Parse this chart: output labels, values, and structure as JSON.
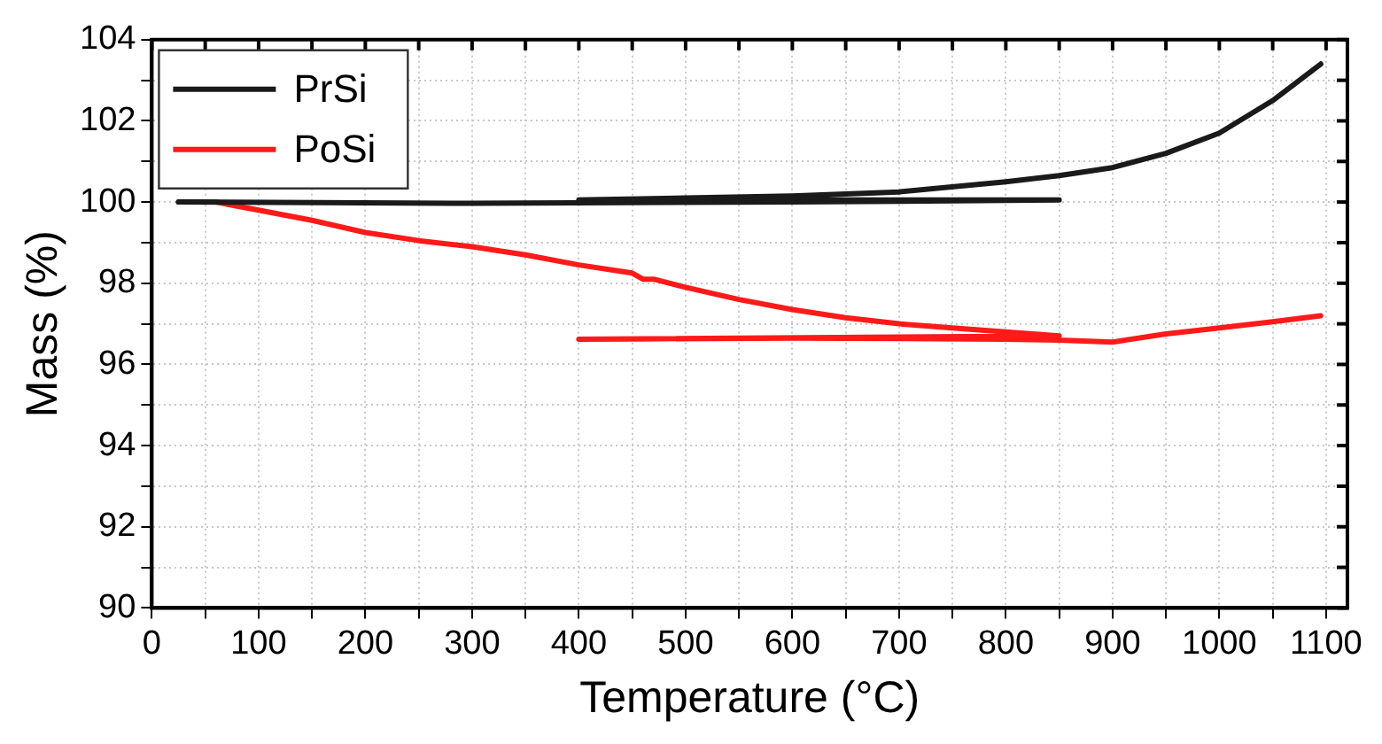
{
  "chart_data": {
    "type": "line",
    "xlabel": "Temperature (°C)",
    "ylabel": "Mass (%)",
    "xlim": [
      0,
      1120
    ],
    "ylim": [
      90,
      104
    ],
    "xticks": [
      0,
      {
        "value": 50,
        "label": null
      },
      100,
      {
        "value": 150,
        "label": null
      },
      200,
      {
        "value": 250,
        "label": null
      },
      300,
      {
        "value": 350,
        "label": null
      },
      400,
      {
        "value": 450,
        "label": null
      },
      500,
      {
        "value": 550,
        "label": null
      },
      600,
      {
        "value": 650,
        "label": null
      },
      700,
      {
        "value": 750,
        "label": null
      },
      800,
      {
        "value": 850,
        "label": null
      },
      900,
      {
        "value": 950,
        "label": null
      },
      1000,
      {
        "value": 1050,
        "label": null
      },
      1100
    ],
    "yticks": [
      90,
      {
        "value": 91,
        "label": null
      },
      92,
      {
        "value": 93,
        "label": null
      },
      94,
      {
        "value": 95,
        "label": null
      },
      96,
      {
        "value": 97,
        "label": null
      },
      98,
      {
        "value": 99,
        "label": null
      },
      100,
      {
        "value": 101,
        "label": null
      },
      102,
      {
        "value": 103,
        "label": null
      },
      104
    ],
    "grid": true,
    "legend": "top left",
    "marker": "none",
    "line_style": "solid",
    "series": [
      {
        "name": "PrSi",
        "color": "#1a1a1a",
        "x": [
          25,
          300,
          600,
          850,
          400,
          500,
          600,
          700,
          800,
          850,
          900,
          950,
          1000,
          1050,
          1095
        ],
        "values": [
          100,
          99.97,
          100,
          100.05,
          100.05,
          100.1,
          100.15,
          100.25,
          100.5,
          100.65,
          100.85,
          101.2,
          101.7,
          102.5,
          103.4
        ]
      },
      {
        "name": "PoSi",
        "color": "#ff1a1a",
        "x": [
          25,
          60,
          100,
          150,
          200,
          250,
          300,
          350,
          400,
          450,
          460,
          470,
          500,
          550,
          600,
          650,
          700,
          750,
          800,
          850,
          400,
          600,
          800,
          850,
          900,
          950,
          1000,
          1050,
          1095
        ],
        "values": [
          100,
          100,
          99.8,
          99.55,
          99.25,
          99.05,
          98.9,
          98.7,
          98.45,
          98.25,
          98.1,
          98.1,
          97.9,
          97.6,
          97.35,
          97.15,
          97,
          96.9,
          96.8,
          96.7,
          96.62,
          96.65,
          96.62,
          96.6,
          96.55,
          96.75,
          96.9,
          97.05,
          97.2
        ]
      }
    ]
  }
}
